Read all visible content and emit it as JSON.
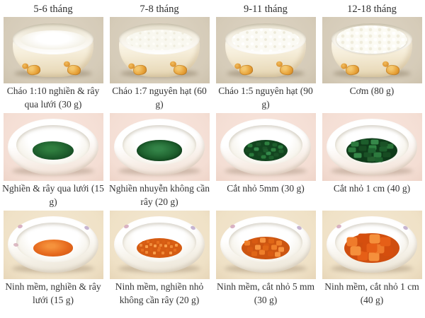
{
  "header": {
    "columns": [
      "5-6 tháng",
      "7-8 tháng",
      "9-11 tháng",
      "12-18 tháng"
    ]
  },
  "rows": {
    "rice": {
      "captions": [
        "Cháo 1:10 nghiền & rây qua lưới (30 g)",
        "Cháo 1:7 nguyên hạt (60 g)",
        "Cháo 1:5 nguyên hạt (90 g)",
        "Cơm (80 g)"
      ]
    },
    "greens": {
      "captions": [
        "Nghiền & rây qua lưới (15 g)",
        "Nghiền nhuyễn không cần rây (20 g)",
        "Cắt nhỏ 5mm (30 g)",
        "Cắt nhỏ 1 cm (40 g)"
      ]
    },
    "carrot": {
      "captions": [
        "Ninh mềm, nghiền & rây lưới (15 g)",
        "Ninh mềm, nghiền nhỏ không cần rây (20 g)",
        "Ninh mềm, cắt nhỏ 5 mm (30 g)",
        "Ninh mềm, cắt nhỏ 1 cm (40 g)"
      ]
    }
  },
  "colors": {
    "spinach_green": "#1d5e2c",
    "carrot_orange": "#e66a1e",
    "row1_background": "#d5cbb8",
    "row2_background": "#f4ded4",
    "row3_background": "#efe1c6",
    "text": "#333333"
  }
}
